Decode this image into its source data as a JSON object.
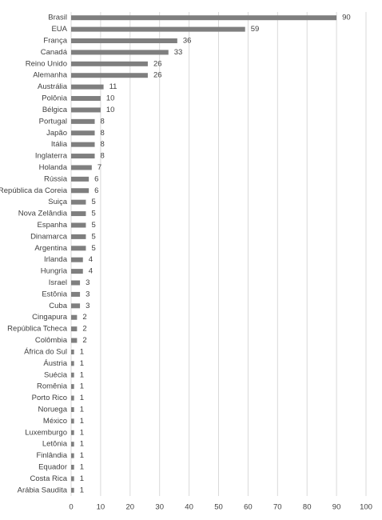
{
  "chart_data": {
    "type": "barh",
    "categories": [
      "Brasil",
      "EUA",
      "França",
      "Canadá",
      "Reino Unido",
      "Alemanha",
      "Austrália",
      "Polônia",
      "Bélgica",
      "Portugal",
      "Japão",
      "Itália",
      "Inglaterra",
      "Holanda",
      "Rússia",
      "República da Coreia",
      "Suiça",
      "Nova Zelândia",
      "Espanha",
      "Dinamarca",
      "Argentina",
      "Irlanda",
      "Hungria",
      "Israel",
      "Estônia",
      "Cuba",
      "Cingapura",
      "República Tcheca",
      "Colômbia",
      "África do Sul",
      "Áustria",
      "Suécia",
      "Romênia",
      "Porto Rico",
      "Noruega",
      "México",
      "Luxemburgo",
      "Letônia",
      "Finlândia",
      "Equador",
      "Costa Rica",
      "Arábia Saudita"
    ],
    "values": [
      90,
      59,
      36,
      33,
      26,
      26,
      11,
      10,
      10,
      8,
      8,
      8,
      8,
      7,
      6,
      6,
      5,
      5,
      5,
      5,
      5,
      4,
      4,
      3,
      3,
      3,
      2,
      2,
      2,
      1,
      1,
      1,
      1,
      1,
      1,
      1,
      1,
      1,
      1,
      1,
      1,
      1
    ],
    "color": "#7f7f7f",
    "xlim": [
      0,
      100
    ],
    "xticks": [
      0,
      10,
      20,
      30,
      40,
      50,
      60,
      70,
      80,
      90,
      100
    ],
    "grid": true
  }
}
